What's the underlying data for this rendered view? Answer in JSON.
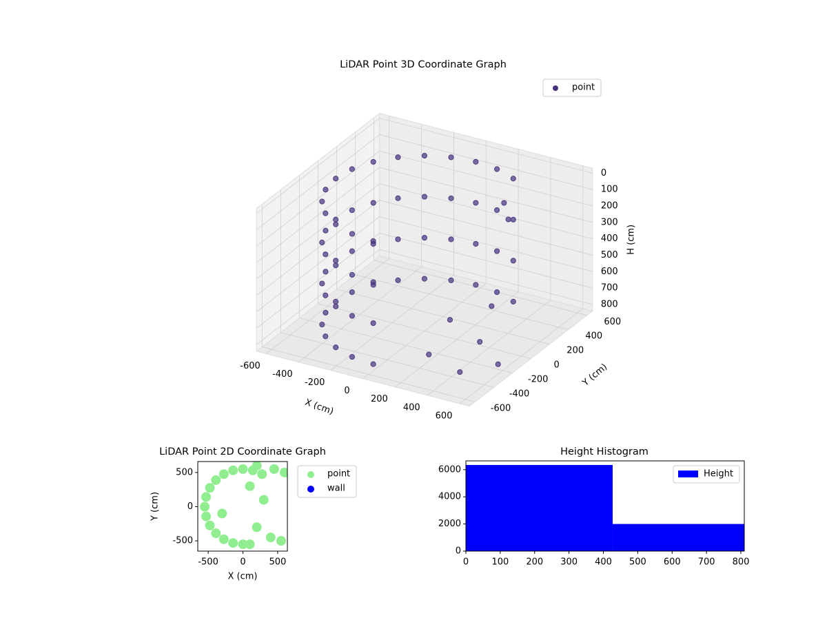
{
  "chart_data": [
    {
      "type": "scatter3d",
      "title": "LiDAR Point 3D Coordinate Graph",
      "x_label": "X (cm)",
      "y_label": "Y (cm)",
      "z_label": "H (cm)",
      "xlim": [
        -660,
        660
      ],
      "ylim": [
        -660,
        660
      ],
      "zlim": [
        840,
        -30
      ],
      "xticks": [
        -600,
        -400,
        -200,
        0,
        200,
        400,
        600
      ],
      "yticks": [
        -600,
        -400,
        -200,
        0,
        200,
        400,
        600
      ],
      "zticks": [
        0,
        100,
        200,
        300,
        400,
        500,
        600,
        700,
        800
      ],
      "legend": "upper right",
      "series": [
        {
          "name": "point",
          "color": "#46327e",
          "x": [
            275,
            275,
            275,
            275,
            142,
            142,
            142,
            142,
            0,
            0,
            0,
            0,
            -142,
            -142,
            -142,
            -142,
            -275,
            -275,
            -275,
            -275,
            -389,
            -389,
            -389,
            -389,
            -476,
            -476,
            -476,
            -476,
            -531,
            -531,
            -531,
            -531,
            -550,
            -550,
            -550,
            -550,
            -531,
            -531,
            -531,
            -531,
            -476,
            -476,
            -476,
            -476,
            -389,
            -389,
            -389,
            -389,
            -275,
            -275,
            -275,
            -275,
            -142,
            -142,
            -142,
            -142,
            0,
            0,
            0,
            0,
            200,
            400,
            100,
            300,
            450,
            600,
            250,
            300
          ],
          "y": [
            476,
            476,
            476,
            476,
            531,
            531,
            531,
            531,
            550,
            550,
            550,
            550,
            531,
            531,
            531,
            531,
            476,
            476,
            476,
            476,
            389,
            389,
            389,
            389,
            275,
            275,
            275,
            275,
            142,
            142,
            142,
            142,
            0,
            0,
            0,
            0,
            -142,
            -142,
            -142,
            -142,
            -275,
            -275,
            -275,
            -275,
            -389,
            -389,
            -389,
            -389,
            -476,
            -476,
            -476,
            -476,
            -531,
            -531,
            -531,
            -531,
            -550,
            -550,
            -550,
            -550,
            -300,
            -100,
            100,
            200,
            -400,
            -250,
            420,
            380
          ],
          "z": [
            50,
            300,
            550,
            800,
            50,
            300,
            550,
            800,
            50,
            300,
            550,
            800,
            50,
            300,
            550,
            800,
            50,
            300,
            550,
            800,
            50,
            300,
            550,
            800,
            50,
            300,
            550,
            800,
            50,
            300,
            550,
            800,
            50,
            300,
            550,
            800,
            50,
            300,
            550,
            800,
            50,
            300,
            550,
            800,
            50,
            300,
            550,
            800,
            50,
            300,
            550,
            800,
            50,
            300,
            550,
            800,
            50,
            300,
            550,
            800,
            800,
            760,
            790,
            700,
            800,
            780,
            180,
            250
          ]
        }
      ]
    },
    {
      "type": "scatter",
      "title": "LiDAR Point 2D Coordinate Graph",
      "x_label": "X (cm)",
      "y_label": "Y (cm)",
      "xlim": [
        -650,
        640
      ],
      "ylim": [
        -650,
        660
      ],
      "xticks": [
        -500,
        0,
        500
      ],
      "yticks": [
        -500,
        0,
        500
      ],
      "legend": "outside right",
      "series": [
        {
          "name": "point",
          "color": "#90ee90",
          "x": [
            275,
            142,
            0,
            -142,
            -275,
            -389,
            -476,
            -531,
            -550,
            -531,
            -476,
            -389,
            -275,
            -142,
            0,
            100,
            300,
            200,
            400,
            550,
            600,
            450,
            -300,
            100,
            200
          ],
          "y": [
            476,
            531,
            550,
            531,
            476,
            389,
            275,
            142,
            0,
            -142,
            -275,
            -389,
            -476,
            -531,
            -550,
            300,
            100,
            -300,
            -450,
            -500,
            500,
            550,
            -100,
            -550,
            600
          ]
        },
        {
          "name": "wall",
          "color": "#0000ff",
          "x": [],
          "y": []
        }
      ]
    },
    {
      "type": "histogram",
      "title": "Height Histogram",
      "bins": [
        0,
        427,
        810
      ],
      "counts": [
        6350,
        2000
      ],
      "xlim": [
        0,
        810
      ],
      "ylim": [
        0,
        6650
      ],
      "xticks": [
        0,
        100,
        200,
        300,
        400,
        500,
        600,
        700,
        800
      ],
      "yticks": [
        0,
        2000,
        4000,
        6000
      ],
      "legend": "upper right",
      "series_name": "Height",
      "color": "#0000ff"
    }
  ]
}
